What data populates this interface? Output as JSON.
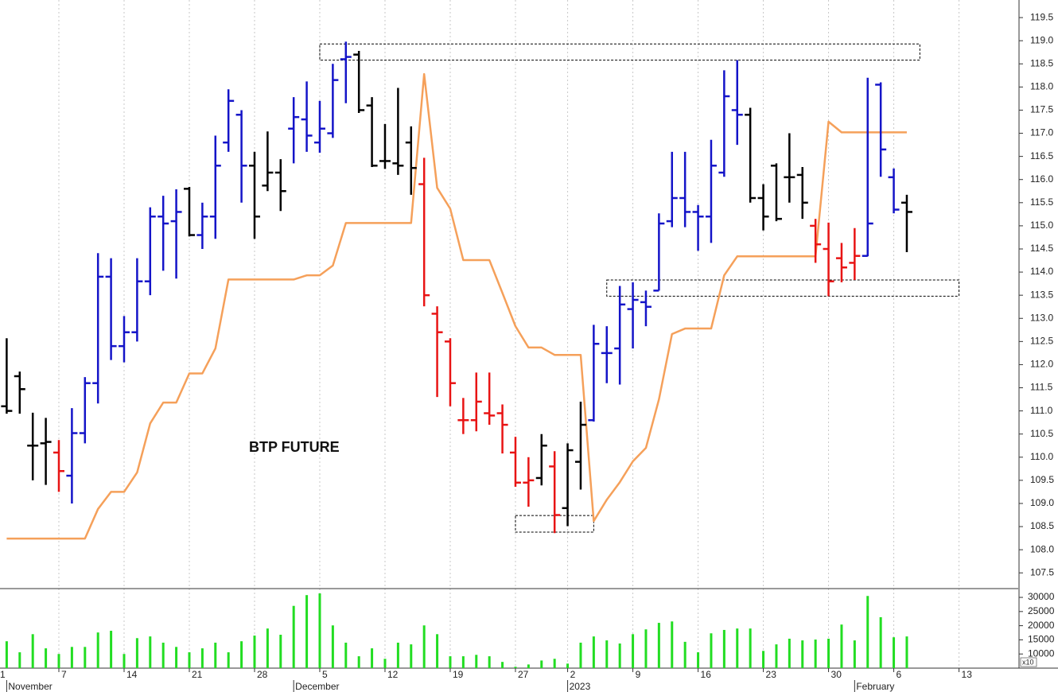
{
  "chart_data": {
    "type": "ohlc",
    "annotation": "BTP FUTURE",
    "xlim": [
      -0.512,
      77.54
    ],
    "xticks": [
      {
        "value": -1,
        "label": "1"
      },
      {
        "value": 4,
        "label": "7"
      },
      {
        "value": 9,
        "label": "14"
      },
      {
        "value": 14,
        "label": "21"
      },
      {
        "value": 19,
        "label": "28"
      },
      {
        "value": 24,
        "label": "5"
      },
      {
        "value": 29,
        "label": "12"
      },
      {
        "value": 34,
        "label": "19"
      },
      {
        "value": 39,
        "label": "27"
      },
      {
        "value": 43,
        "label": "2"
      },
      {
        "value": 48,
        "label": "9"
      },
      {
        "value": 53,
        "label": "16"
      },
      {
        "value": 58,
        "label": "23"
      },
      {
        "value": 63,
        "label": "30"
      },
      {
        "value": 68,
        "label": "6"
      },
      {
        "value": 73,
        "label": "13"
      }
    ],
    "months": [
      {
        "value": 0,
        "label": "November"
      },
      {
        "value": 22,
        "label": "December"
      },
      {
        "value": 43,
        "label": "2023"
      },
      {
        "value": 65,
        "label": "February"
      }
    ],
    "ylim": [
      107.16,
      119.88
    ],
    "yticks": [
      107.5,
      {
        "value": 108,
        "label": "108.0"
      },
      108.5,
      {
        "value": 109,
        "label": "109.0"
      },
      109.5,
      {
        "value": 110,
        "label": "110.0"
      },
      110.5,
      {
        "value": 111,
        "label": "111.0"
      },
      111.5,
      {
        "value": 112,
        "label": "112.0"
      },
      112.5,
      {
        "value": 113,
        "label": "113.0"
      },
      113.5,
      {
        "value": 114,
        "label": "114.0"
      },
      114.5,
      {
        "value": 115,
        "label": "115.0"
      },
      115.5,
      {
        "value": 116,
        "label": "116.0"
      },
      116.5,
      {
        "value": 117,
        "label": "117.0"
      },
      117.5,
      {
        "value": 118,
        "label": "118.0"
      },
      118.5,
      {
        "value": 119,
        "label": "119.0"
      },
      119.5
    ],
    "grid": true,
    "ohlc": {
      "open": [
        111.1,
        111.75,
        110.25,
        110.3,
        110.1,
        109.6,
        110.52,
        111.6,
        113.9,
        112.4,
        112.7,
        113.8,
        115.2,
        115.1,
        115.8,
        114.8,
        115.2,
        116.8,
        117.4,
        116.3,
        115.87,
        116.15,
        117.1,
        117.3,
        116.8,
        117.0,
        118.6,
        118.7,
        117.6,
        116.4,
        116.35,
        116.8,
        115.9,
        113.1,
        112.5,
        110.8,
        110.8,
        110.95,
        110.95,
        110.1,
        109.45,
        109.55,
        109.8,
        108.9,
        109.9,
        110.8,
        112.25,
        112.35,
        113.2,
        113.35,
        113.6,
        115.1,
        115.6,
        115.3,
        115.2,
        116.15,
        117.5,
        117.4,
        115.6,
        116.3,
        116.05,
        116.1,
        115.0,
        114.5,
        114.3,
        114.2,
        114.35,
        118.05,
        116.05,
        115.5
      ],
      "high": [
        112.57,
        111.85,
        110.96,
        110.85,
        110.37,
        111.06,
        111.73,
        114.41,
        114.3,
        113.05,
        114.3,
        115.4,
        115.65,
        115.79,
        115.84,
        115.5,
        116.95,
        117.95,
        117.5,
        116.6,
        117.04,
        116.44,
        117.78,
        118.12,
        117.7,
        118.5,
        118.98,
        118.78,
        117.78,
        117.2,
        117.98,
        117.15,
        116.47,
        113.26,
        112.57,
        111.28,
        111.83,
        111.83,
        111.14,
        110.44,
        110.0,
        110.5,
        110.13,
        110.3,
        111.2,
        112.86,
        112.83,
        113.7,
        113.78,
        113.6,
        115.27,
        116.6,
        116.6,
        115.45,
        116.86,
        118.36,
        118.58,
        117.55,
        115.9,
        116.35,
        117.0,
        116.27,
        115.15,
        115.07,
        114.63,
        114.95,
        118.2,
        118.1,
        116.24,
        115.67
      ],
      "low": [
        110.94,
        110.94,
        109.5,
        109.4,
        109.25,
        109.0,
        110.3,
        111.16,
        112.1,
        112.05,
        112.5,
        113.5,
        114.03,
        113.86,
        114.77,
        114.5,
        114.72,
        116.6,
        115.5,
        114.72,
        115.75,
        115.32,
        116.35,
        116.6,
        116.58,
        116.9,
        117.65,
        117.44,
        116.27,
        116.23,
        116.1,
        115.67,
        113.26,
        111.3,
        111.1,
        110.5,
        110.56,
        110.7,
        110.08,
        109.36,
        108.93,
        109.39,
        108.36,
        108.51,
        109.3,
        110.77,
        111.6,
        111.57,
        112.35,
        112.83,
        113.6,
        114.97,
        114.97,
        114.46,
        114.63,
        116.06,
        116.75,
        115.5,
        114.9,
        115.1,
        115.5,
        115.15,
        114.2,
        113.48,
        113.78,
        113.83,
        114.34,
        116.06,
        115.27,
        114.43
      ],
      "close": [
        111.0,
        111.47,
        110.25,
        110.33,
        109.7,
        110.52,
        111.6,
        113.9,
        112.4,
        112.7,
        113.8,
        115.2,
        115.05,
        115.3,
        114.8,
        115.2,
        116.3,
        117.7,
        116.3,
        115.2,
        116.15,
        115.75,
        117.35,
        116.95,
        117.1,
        118.15,
        118.65,
        117.5,
        116.3,
        116.4,
        116.3,
        116.25,
        113.5,
        112.7,
        111.6,
        110.8,
        111.2,
        110.9,
        110.7,
        109.45,
        109.5,
        110.25,
        108.75,
        110.15,
        110.7,
        112.45,
        112.25,
        113.3,
        113.4,
        113.25,
        115.05,
        115.6,
        115.3,
        115.2,
        116.3,
        117.8,
        117.4,
        115.6,
        115.2,
        115.15,
        116.05,
        115.5,
        114.6,
        113.8,
        114.1,
        114.35,
        115.05,
        116.65,
        115.35,
        115.3
      ],
      "colors": [
        "#000000",
        "#000000",
        "#000000",
        "#000000",
        "#e81414",
        "#1414c8",
        "#1414c8",
        "#1414c8",
        "#1414c8",
        "#1414c8",
        "#1414c8",
        "#1414c8",
        "#1414c8",
        "#1414c8",
        "#000000",
        "#1414c8",
        "#1414c8",
        "#1414c8",
        "#1414c8",
        "#000000",
        "#000000",
        "#000000",
        "#1414c8",
        "#1414c8",
        "#1414c8",
        "#1414c8",
        "#1414c8",
        "#000000",
        "#000000",
        "#000000",
        "#000000",
        "#000000",
        "#e81414",
        "#e81414",
        "#e81414",
        "#e81414",
        "#e81414",
        "#e81414",
        "#e81414",
        "#e81414",
        "#e81414",
        "#000000",
        "#e81414",
        "#000000",
        "#000000",
        "#1414c8",
        "#1414c8",
        "#1414c8",
        "#1414c8",
        "#1414c8",
        "#1414c8",
        "#1414c8",
        "#1414c8",
        "#1414c8",
        "#1414c8",
        "#1414c8",
        "#1414c8",
        "#000000",
        "#000000",
        "#000000",
        "#000000",
        "#000000",
        "#e81414",
        "#e81414",
        "#e81414",
        "#e81414",
        "#1414c8",
        "#1414c8",
        "#1414c8",
        "#000000"
      ]
    },
    "stop_line": {
      "color": "#f5a05a",
      "values": [
        108.24,
        108.24,
        108.24,
        108.24,
        108.24,
        108.24,
        108.24,
        108.88,
        109.25,
        109.25,
        109.67,
        110.73,
        111.18,
        111.18,
        111.81,
        111.81,
        112.35,
        113.84,
        113.84,
        113.84,
        113.84,
        113.84,
        113.84,
        113.93,
        113.93,
        114.14,
        115.06,
        115.06,
        115.06,
        115.06,
        115.06,
        115.06,
        118.28,
        115.82,
        115.37,
        114.26,
        114.26,
        114.26,
        113.55,
        112.83,
        112.37,
        112.37,
        112.21,
        112.21,
        112.21,
        108.62,
        109.08,
        109.46,
        109.91,
        110.2,
        111.25,
        112.66,
        112.78,
        112.78,
        112.78,
        113.93,
        114.34,
        114.34,
        114.34,
        114.34,
        114.34,
        114.34,
        114.34,
        117.25,
        117.02,
        117.02,
        117.02,
        117.02,
        117.02,
        117.02
      ]
    },
    "boxes": [
      {
        "x": [
          24,
          70
        ],
        "y": [
          118.58,
          118.93
        ]
      },
      {
        "x": [
          46,
          73
        ],
        "y": [
          113.48,
          113.83
        ]
      },
      {
        "x": [
          39,
          45
        ],
        "y": [
          108.38,
          108.74
        ]
      }
    ],
    "volume": {
      "color": "#22dd22",
      "vlim": [
        5000,
        33100
      ],
      "vticks": [
        10000,
        15000,
        20000,
        25000,
        30000
      ],
      "unit_label": "x10",
      "values": [
        14500,
        10600,
        17000,
        12000,
        10000,
        12500,
        12500,
        17600,
        18200,
        10000,
        15600,
        16200,
        14000,
        12500,
        10600,
        12000,
        14000,
        10600,
        14500,
        16500,
        19000,
        16800,
        27000,
        30800,
        31400,
        20100,
        14000,
        9200,
        12000,
        8300,
        14000,
        13400,
        20100,
        17000,
        9200,
        9200,
        9700,
        9200,
        7200,
        5500,
        6300,
        7700,
        8300,
        6600,
        14000,
        16200,
        14800,
        13700,
        17000,
        18700,
        21000,
        21500,
        14300,
        10600,
        17300,
        18500,
        19000,
        19000,
        11100,
        13400,
        15400,
        14800,
        15100,
        15400,
        20400,
        14800,
        30500,
        23000,
        15900,
        16200
      ]
    }
  }
}
